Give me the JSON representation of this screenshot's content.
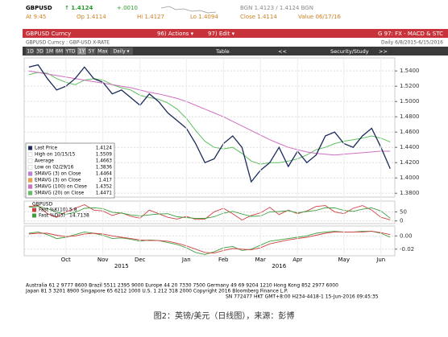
{
  "header": {
    "symbol": "GBPUSD",
    "last": "↑ 1.4124",
    "change": "+.0010",
    "bid_ask": "BGN 1.4123 / 1.4124 BGN",
    "at": "At 9:45",
    "open": "Op 1.4114",
    "high": "Hi 1.4127",
    "low": "Lo 1.4094",
    "close": "Close 1.4114",
    "value": "Value 06/17/16"
  },
  "menu": {
    "security": "GBPUSD Curncy",
    "actions": "96) Actions ▾",
    "edit": "97) Edit ▾",
    "function": "G 97: FX - MACD & STC",
    "subtitle": "GBPUSD Curncy : GBP-USD X-RATE",
    "range": "Daily 6/8/2015-6/15/2016"
  },
  "toolbar": {
    "buttons": [
      "1D",
      "3D",
      "1M",
      "6M",
      "YTD",
      "1Y",
      "5Y",
      "Max",
      "Daily ▾"
    ],
    "table": "Table",
    "back": "<<",
    "study": "Security/Study",
    "forward": ">>"
  },
  "chart_data": {
    "type": "line",
    "categories": [
      null,
      null,
      null,
      null,
      "Oct",
      null,
      null,
      null,
      "Nov",
      null,
      null,
      null,
      "Dec",
      null,
      null,
      null,
      null,
      "Jan",
      null,
      null,
      null,
      "Feb",
      null,
      null,
      null,
      "Mar",
      null,
      null,
      null,
      "Apr",
      null,
      null,
      null,
      null,
      "May",
      null,
      null,
      null,
      "Jun",
      null
    ],
    "year_labels": [
      "2015",
      "2016"
    ],
    "ylim": [
      1.375,
      1.557
    ],
    "yticks": [
      {
        "value": 1.38,
        "label": "1.3800"
      },
      {
        "value": 1.4,
        "label": "1.4000"
      },
      {
        "value": 1.42,
        "label": "1.4200"
      },
      {
        "value": 1.44,
        "label": "1.4400"
      },
      {
        "value": 1.46,
        "label": "1.4600"
      },
      {
        "value": 1.48,
        "label": "1.4800"
      },
      {
        "value": 1.5,
        "label": "1.5000"
      },
      {
        "value": 1.52,
        "label": "1.5200"
      },
      {
        "value": 1.54,
        "label": "1.5400"
      }
    ],
    "series": [
      {
        "name": "Last Price",
        "color": "#1a2a5a",
        "last": 1.4124,
        "values": [
          1.545,
          1.548,
          1.53,
          1.515,
          1.52,
          1.53,
          1.545,
          1.53,
          1.525,
          1.51,
          1.515,
          1.505,
          1.495,
          1.51,
          1.5,
          1.485,
          1.475,
          1.465,
          1.445,
          1.42,
          1.425,
          1.445,
          1.455,
          1.44,
          1.395,
          1.41,
          1.42,
          1.44,
          1.415,
          1.435,
          1.42,
          1.43,
          1.455,
          1.46,
          1.445,
          1.44,
          1.455,
          1.465,
          1.44,
          1.412
        ]
      },
      {
        "name": "SMAVG (100) on Close",
        "color": "#d070c0",
        "last": 1.4352,
        "values": [
          1.54,
          1.538,
          1.536,
          1.534,
          1.532,
          1.53,
          1.528,
          1.526,
          1.524,
          1.522,
          1.52,
          1.518,
          1.515,
          1.512,
          1.51,
          1.507,
          1.504,
          1.5,
          1.495,
          1.49,
          1.485,
          1.48,
          1.474,
          1.468,
          1.462,
          1.456,
          1.45,
          1.445,
          1.44,
          1.437,
          1.434,
          1.432,
          1.431,
          1.43,
          1.431,
          1.432,
          1.433,
          1.434,
          1.435,
          1.435
        ]
      },
      {
        "name": "SMAVG (20) on Close",
        "color": "#60c060",
        "last": 1.4471,
        "values": [
          1.535,
          1.538,
          1.537,
          1.53,
          1.525,
          1.522,
          1.528,
          1.53,
          1.528,
          1.522,
          1.518,
          1.515,
          1.508,
          1.505,
          1.503,
          1.498,
          1.49,
          1.478,
          1.462,
          1.448,
          1.44,
          1.438,
          1.44,
          1.432,
          1.422,
          1.418,
          1.42,
          1.42,
          1.422,
          1.425,
          1.43,
          1.437,
          1.44,
          1.445,
          1.448,
          1.45,
          1.452,
          1.455,
          1.452,
          1.447
        ]
      }
    ],
    "stats": [
      {
        "name": "High on 10/15/15",
        "value": 1.5509,
        "color": "#ffffff"
      },
      {
        "name": "Average",
        "value": 1.4663,
        "color": "#ffffff"
      },
      {
        "name": "Low on 02/29/16",
        "value": 1.3836,
        "color": "#ffffff"
      },
      {
        "name": "SMAVG (3) on Close",
        "value": 1.4464,
        "color": "#c080e0"
      },
      {
        "name": "EMAVG (3) on Close",
        "value": 1.417,
        "color": "#f0a040"
      }
    ],
    "stoch": {
      "title": "GBPUSD",
      "ylim": [
        -15,
        110
      ],
      "yticks": [
        50,
        0
      ],
      "series": [
        {
          "name": "Fast %K(10)",
          "color": "#d04040",
          "last": 5.8,
          "values": [
            80,
            85,
            40,
            20,
            50,
            70,
            90,
            60,
            55,
            30,
            45,
            25,
            15,
            60,
            40,
            20,
            10,
            25,
            8,
            10,
            50,
            70,
            40,
            5,
            30,
            45,
            75,
            35,
            60,
            40,
            55,
            80,
            85,
            50,
            40,
            70,
            85,
            60,
            20,
            5.8
          ]
        },
        {
          "name": "Fast %D(3)",
          "color": "#40a040",
          "last": 14.7138,
          "values": [
            75,
            80,
            68,
            48,
            37,
            47,
            70,
            73,
            68,
            48,
            43,
            33,
            28,
            33,
            38,
            40,
            23,
            18,
            14,
            14,
            23,
            43,
            53,
            38,
            25,
            27,
            50,
            52,
            57,
            45,
            52,
            58,
            73,
            72,
            58,
            53,
            65,
            72,
            55,
            14.7138
          ]
        }
      ]
    },
    "macd": {
      "ylim": [
        -0.03,
        0.015
      ],
      "yticks": [
        {
          "value": 0,
          "label": "0.00"
        },
        {
          "value": -0.02,
          "label": "-0.02"
        }
      ],
      "series": [
        {
          "name": "MACD",
          "color": "#40a040",
          "values": [
            0.004,
            0.006,
            0.002,
            -0.004,
            -0.002,
            0.002,
            0.006,
            0.004,
            0.001,
            -0.004,
            -0.003,
            -0.005,
            -0.008,
            -0.006,
            -0.007,
            -0.01,
            -0.013,
            -0.018,
            -0.025,
            -0.028,
            -0.024,
            -0.018,
            -0.016,
            -0.022,
            -0.02,
            -0.014,
            -0.008,
            -0.006,
            -0.004,
            -0.002,
            0,
            0.004,
            0.006,
            0.007,
            0.006,
            0.006,
            0.007,
            0.007,
            0.004,
            -0.002
          ]
        },
        {
          "name": "Signal",
          "color": "#d04040",
          "values": [
            0.003,
            0.004,
            0.004,
            0.001,
            -0.001,
            0,
            0.003,
            0.004,
            0.003,
            0,
            -0.002,
            -0.004,
            -0.006,
            -0.007,
            -0.007,
            -0.008,
            -0.011,
            -0.015,
            -0.02,
            -0.025,
            -0.026,
            -0.022,
            -0.019,
            -0.02,
            -0.021,
            -0.018,
            -0.012,
            -0.009,
            -0.006,
            -0.004,
            -0.002,
            0.001,
            0.004,
            0.006,
            0.006,
            0.006,
            0.006,
            0.007,
            0.005,
            0.002
          ]
        }
      ]
    }
  },
  "footer": [
    "Australia 61 2 9777 8600 Brazil 5511 2395 9000 Europe 44 20 7330 7500 Germany 49 69 9204 1210 Hong Kong 852 2977 6000",
    "Japan 81 3 3201 8900        Singapore 65 6212 1000        U.S. 1 212 318 2000        Copyright 2016 Bloomberg Finance L.P.",
    "SN 772477 HKT  GMT+8:00 H234-4418-1 15-Jun-2016 09:45:35"
  ],
  "caption": "图2：英镑/美元（日线图），来源：彭博"
}
